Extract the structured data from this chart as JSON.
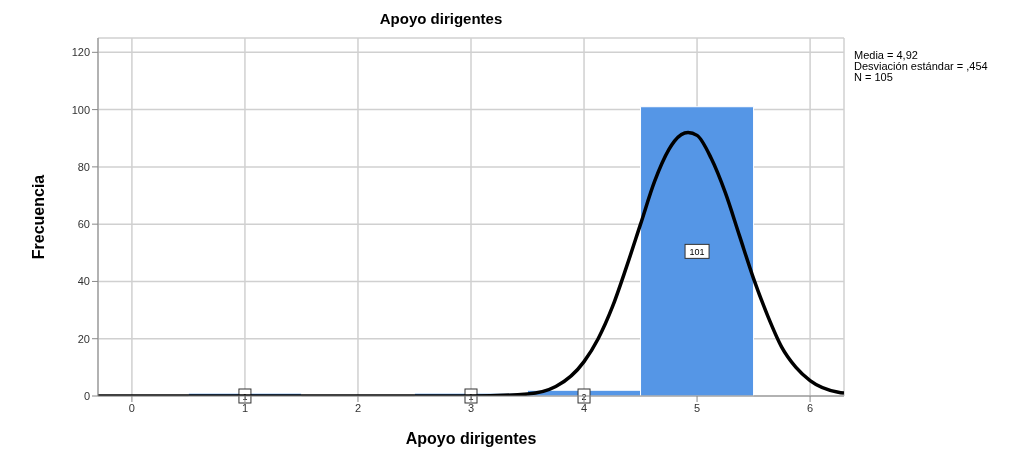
{
  "chart_data": {
    "type": "histogram",
    "title": "Apoyo dirigentes",
    "xlabel": "Apoyo dirigentes",
    "ylabel": "Frecuencia",
    "bins": [
      0.5,
      1.5,
      2.5,
      3.5,
      4.5,
      5.5
    ],
    "values": [
      1,
      0,
      1,
      2,
      101
    ],
    "color": "#5596e6",
    "value_labels": [
      "1",
      null,
      "1",
      "2",
      "101"
    ],
    "series": [
      {
        "type": "line",
        "color": "#000000",
        "x": [
          -0.3,
          1,
          2,
          3,
          3.5,
          3.75,
          4,
          4.125,
          4.25,
          4.375,
          4.5,
          4.625,
          4.75,
          4.8,
          4.92,
          5,
          5.125,
          5.25,
          5.375,
          5.5,
          5.625,
          5.75,
          5.875,
          6,
          6.25,
          6.3
        ],
        "values": [
          0,
          0,
          0,
          0,
          0.7,
          3.3,
          12,
          20,
          31,
          45,
          60,
          75,
          86,
          89,
          92,
          91,
          83,
          71,
          56,
          41,
          28,
          17,
          10,
          5.4,
          1.3,
          1
        ]
      }
    ],
    "xlim": [
      -0.3,
      6.3
    ],
    "xticks": [
      0,
      1,
      2,
      3,
      4,
      5,
      6
    ],
    "ylim": [
      0,
      125
    ],
    "yticks": [
      0,
      20,
      40,
      60,
      80,
      100,
      120
    ],
    "grid": true,
    "annotations": [
      "Media = 4,92",
      "Desviación estándar = ,454",
      "N = 105"
    ]
  }
}
